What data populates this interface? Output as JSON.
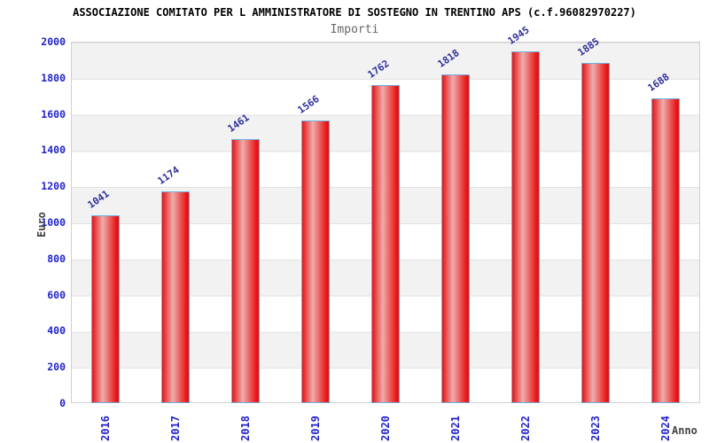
{
  "chart_data": {
    "type": "bar",
    "title": "ASSOCIAZIONE COMITATO PER L AMMINISTRATORE DI SOSTEGNO IN TRENTINO APS (c.f.96082970227)",
    "subtitle": "Importi",
    "xlabel": "Anno",
    "ylabel": "Euro",
    "categories": [
      "2016",
      "2017",
      "2018",
      "2019",
      "2020",
      "2021",
      "2022",
      "2023",
      "2024"
    ],
    "values": [
      1041,
      1174,
      1461,
      1566,
      1762,
      1818,
      1945,
      1885,
      1688
    ],
    "ylim": [
      0,
      2000
    ],
    "ytick_step": 200,
    "ytick_labels": [
      "0",
      "200",
      "400",
      "600",
      "800",
      "1000",
      "1200",
      "1400",
      "1600",
      "1800",
      "2000"
    ],
    "grid": "horizontal bands, gridline every 200",
    "legend_position": "none",
    "colors": {
      "title_text": "#000000",
      "subtitle_text": "#666666",
      "axis_tick_text": "#2222cc",
      "value_label_text": "#30309a",
      "axis_name_text": "#444444",
      "bar_edge": "#e81212",
      "bar_highlight": "#eeadad",
      "bar_border": "#6eb1e3",
      "band_fill": "#f2f2f2",
      "gridline": "#e2e2e2",
      "plot_border": "#cfcfcf"
    }
  }
}
